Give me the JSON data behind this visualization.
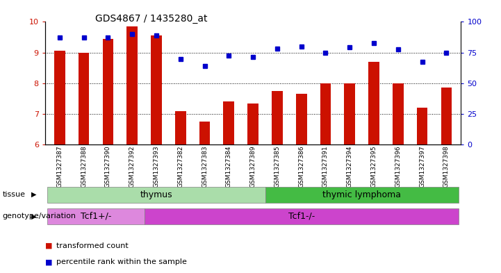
{
  "title": "GDS4867 / 1435280_at",
  "samples": [
    "GSM1327387",
    "GSM1327388",
    "GSM1327390",
    "GSM1327392",
    "GSM1327393",
    "GSM1327382",
    "GSM1327383",
    "GSM1327384",
    "GSM1327389",
    "GSM1327385",
    "GSM1327386",
    "GSM1327391",
    "GSM1327394",
    "GSM1327395",
    "GSM1327396",
    "GSM1327397",
    "GSM1327398"
  ],
  "bar_values": [
    9.05,
    9.0,
    9.45,
    9.85,
    9.55,
    7.1,
    6.75,
    7.4,
    7.35,
    7.75,
    7.65,
    8.0,
    8.0,
    8.7,
    8.0,
    7.2,
    7.85
  ],
  "dot_values": [
    9.5,
    9.5,
    9.5,
    9.6,
    9.55,
    8.78,
    8.57,
    8.9,
    8.85,
    9.12,
    9.2,
    9.0,
    9.18,
    9.3,
    9.1,
    8.7,
    9.0
  ],
  "ylim_left": [
    6,
    10
  ],
  "ylim_right": [
    0,
    100
  ],
  "yticks_left": [
    6,
    7,
    8,
    9,
    10
  ],
  "yticks_right": [
    0,
    25,
    50,
    75,
    100
  ],
  "bar_color": "#cc1100",
  "dot_color": "#0000cc",
  "tissue_groups": [
    {
      "label": "thymus",
      "start": 0,
      "end": 9,
      "color": "#aaddaa"
    },
    {
      "label": "thymic lymphoma",
      "start": 9,
      "end": 17,
      "color": "#44bb44"
    }
  ],
  "genotype_groups": [
    {
      "label": "Tcf1+/-",
      "start": 0,
      "end": 4,
      "color": "#dd88dd"
    },
    {
      "label": "Tcf1-/-",
      "start": 4,
      "end": 17,
      "color": "#cc44cc"
    }
  ],
  "tissue_label": "tissue",
  "genotype_label": "genotype/variation",
  "legend_bar": "transformed count",
  "legend_dot": "percentile rank within the sample",
  "background_color": "#ffffff",
  "tick_label_color": "#cc1100",
  "right_axis_color": "#0000cc",
  "grid_ticks": [
    7,
    8,
    9
  ]
}
